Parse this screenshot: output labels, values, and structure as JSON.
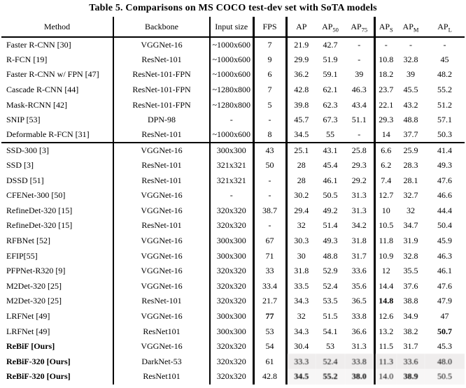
{
  "title": "Table 5. Comparisons on MS COCO test-dev set with SoTA models",
  "table": {
    "header": [
      {
        "text": "Method"
      },
      {
        "text": "Backbone"
      },
      {
        "text": "Input size"
      },
      {
        "text": "FPS"
      },
      {
        "text": "AP"
      },
      {
        "text": "AP",
        "sub": "50"
      },
      {
        "text": "AP",
        "sub": "75"
      },
      {
        "text": "AP",
        "sub": "S"
      },
      {
        "text": "AP",
        "sub": "M"
      },
      {
        "text": "AP",
        "sub": "L"
      }
    ],
    "fields": [
      "method",
      "backbone",
      "input",
      "fps",
      "ap",
      "ap50",
      "ap75",
      "aps",
      "apm",
      "apl"
    ],
    "rows": [
      {
        "method": "Faster R-CNN  [30]",
        "backbone": "VGGNet-16",
        "input": "~1000x600",
        "fps": "7",
        "ap": "21.9",
        "ap50": "42.7",
        "ap75": "-",
        "aps": "-",
        "apm": "-",
        "apl": "-"
      },
      {
        "method": "R-FCN [19]",
        "backbone": "ResNet-101",
        "input": "~1000x600",
        "fps": "9",
        "ap": "29.9",
        "ap50": "51.9",
        "ap75": "-",
        "aps": "10.8",
        "apm": "32.8",
        "apl": "45"
      },
      {
        "method": "Faster R-CNN w/ FPN [47]",
        "backbone": "ResNet-101-FPN",
        "input": "~1000x600",
        "fps": "6",
        "ap": "36.2",
        "ap50": "59.1",
        "ap75": "39",
        "aps": "18.2",
        "apm": "39",
        "apl": "48.2"
      },
      {
        "method": "Cascade R-CNN [44]",
        "backbone": "ResNet-101-FPN",
        "input": "~1280x800",
        "fps": "7",
        "ap": "42.8",
        "ap50": "62.1",
        "ap75": "46.3",
        "aps": "23.7",
        "apm": "45.5",
        "apl": "55.2"
      },
      {
        "method": "Mask-RCNN [42]",
        "backbone": "ResNet-101-FPN",
        "input": "~1280x800",
        "fps": "5",
        "ap": "39.8",
        "ap50": "62.3",
        "ap75": "43.4",
        "aps": "22.1",
        "apm": "43.2",
        "apl": "51.2"
      },
      {
        "method": "SNIP [53]",
        "backbone": "DPN-98",
        "input": "-",
        "fps": "-",
        "ap": "45.7",
        "ap50": "67.3",
        "ap75": "51.1",
        "aps": "29.3",
        "apm": "48.8",
        "apl": "57.1"
      },
      {
        "method": "Deformable R-FCN [31]",
        "backbone": "ResNet-101",
        "input": "~1000x600",
        "fps": "8",
        "ap": "34.5",
        "ap50": "55",
        "ap75": "-",
        "aps": "14",
        "apm": "37.7",
        "apl": "50.3",
        "section_end": true
      },
      {
        "method": "SSD-300 [3]",
        "backbone": "VGGNet-16",
        "input": "300x300",
        "fps": "43",
        "ap": "25.1",
        "ap50": "43.1",
        "ap75": "25.8",
        "aps": "6.6",
        "apm": "25.9",
        "apl": "41.4"
      },
      {
        "method": "SSD [3]",
        "backbone": "ResNet-101",
        "input": "321x321",
        "fps": "50",
        "ap": "28",
        "ap50": "45.4",
        "ap75": "29.3",
        "aps": "6.2",
        "apm": "28.3",
        "apl": "49.3"
      },
      {
        "method": "DSSD [51]",
        "backbone": "ResNet-101",
        "input": "321x321",
        "fps": "-",
        "ap": "28",
        "ap50": "46.1",
        "ap75": "29.2",
        "aps": "7.4",
        "apm": "28.1",
        "apl": "47.6"
      },
      {
        "method": "CFENet-300 [50]",
        "backbone": "VGGNet-16",
        "input": "-",
        "fps": "-",
        "ap": "30.2",
        "ap50": "50.5",
        "ap75": "31.3",
        "aps": "12.7",
        "apm": "32.7",
        "apl": "46.6"
      },
      {
        "method": "RefineDet-320 [15]",
        "backbone": "VGGNet-16",
        "input": "320x320",
        "fps": "38.7",
        "ap": "29.4",
        "ap50": "49.2",
        "ap75": "31.3",
        "aps": "10",
        "apm": "32",
        "apl": "44.4"
      },
      {
        "method": "RefineDet-320 [15]",
        "backbone": "ResNet-101",
        "input": "320x320",
        "fps": "-",
        "ap": "32",
        "ap50": "51.4",
        "ap75": "34.2",
        "aps": "10.5",
        "apm": "34.7",
        "apl": "50.4"
      },
      {
        "method": "RFBNet [52]",
        "backbone": "VGGNet-16",
        "input": "300x300",
        "fps": "67",
        "ap": "30.3",
        "ap50": "49.3",
        "ap75": "31.8",
        "aps": "11.8",
        "apm": "31.9",
        "apl": "45.9"
      },
      {
        "method": "EFIP[55]",
        "backbone": "VGGNet-16",
        "input": "300x300",
        "fps": "71",
        "ap": "30",
        "ap50": "48.8",
        "ap75": "31.7",
        "aps": "10.9",
        "apm": "32.8",
        "apl": "46.3"
      },
      {
        "method": "PFPNet-R320 [9]",
        "backbone": "VGGNet-16",
        "input": "320x320",
        "fps": "33",
        "ap": "31.8",
        "ap50": "52.9",
        "ap75": "33.6",
        "aps": "12",
        "apm": "35.5",
        "apl": "46.1"
      },
      {
        "method": "M2Det-320 [25]",
        "backbone": "VGGNet-16",
        "input": "320x320",
        "fps": "33.4",
        "ap": "33.5",
        "ap50": "52.4",
        "ap75": "35.6",
        "aps": "14.4",
        "apm": "37.6",
        "apl": "47.6"
      },
      {
        "method": "M2Det-320 [25]",
        "backbone": "ResNet-101",
        "input": "320x320",
        "fps": "21.7",
        "ap": "34.3",
        "ap50": "53.5",
        "ap75": "36.5",
        "aps": "14.8",
        "apm": "38.8",
        "apl": "47.9",
        "bold": [
          "aps"
        ]
      },
      {
        "method": "LRFNet [49]",
        "backbone": "VGGNet-16",
        "input": "300x300",
        "fps": "77",
        "ap": "32",
        "ap50": "51.5",
        "ap75": "33.8",
        "aps": "12.6",
        "apm": "34.9",
        "apl": "47",
        "bold": [
          "fps"
        ]
      },
      {
        "method": "LRFNet [49]",
        "backbone": "ResNet101",
        "input": "300x300",
        "fps": "53",
        "ap": "34.3",
        "ap50": "54.1",
        "ap75": "36.6",
        "aps": "13.2",
        "apm": "38.2",
        "apl": "50.7",
        "bold": [
          "apl"
        ]
      },
      {
        "method": "ReBiF [Ours]",
        "backbone": "VGGNet-16",
        "input": "320x320",
        "fps": "54",
        "ap": "30.4",
        "ap50": "53",
        "ap75": "31.3",
        "aps": "11.5",
        "apm": "31.7",
        "apl": "45.3",
        "method_bold": true
      },
      {
        "method": "ReBiF-320 [Ours]",
        "backbone": "DarkNet-53",
        "input": "320x320",
        "fps": "61",
        "ap": "33.3",
        "ap50": "52.4",
        "ap75": "33.8",
        "aps": "11.3",
        "apm": "33.6",
        "apl": "48.0",
        "method_bold": true,
        "degraded": true,
        "wash": "wash"
      },
      {
        "method": "ReBiF-320 [Ours]",
        "backbone": "ResNet101",
        "input": "320x320",
        "fps": "42.8",
        "ap": "34.5",
        "ap50": "55.2",
        "ap75": "38.0",
        "aps": "14.0",
        "apm": "38.9",
        "apl": "50.5",
        "method_bold": true,
        "degraded": true,
        "wash": "wash2",
        "bold": [
          "ap",
          "ap50",
          "ap75",
          "apm"
        ]
      }
    ]
  }
}
